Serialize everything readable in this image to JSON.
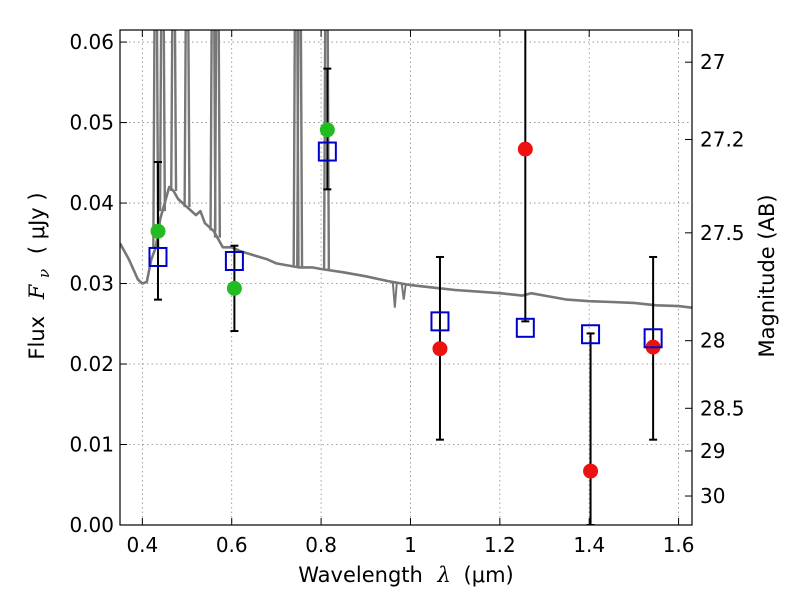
{
  "chart_data": {
    "type": "scatter",
    "xlabel_text": "Wavelength",
    "xlabel_math": "λ",
    "xlabel_unit": "(μm)",
    "ylabel_text": "Flux",
    "ylabel_math_base": "F",
    "ylabel_math_sub": "ν",
    "ylabel_unit": "( μJy )",
    "y2label": "Magnitude (AB)",
    "xlim": [
      0.35,
      1.63
    ],
    "ylim": [
      0.0,
      0.0615
    ],
    "grid": true,
    "xticks": [
      {
        "value": 0.4,
        "label": "0.4"
      },
      {
        "value": 0.6,
        "label": "0.6"
      },
      {
        "value": 0.8,
        "label": "0.8"
      },
      {
        "value": 1.0,
        "label": "1"
      },
      {
        "value": 1.2,
        "label": "1.2"
      },
      {
        "value": 1.4,
        "label": "1.4"
      },
      {
        "value": 1.6,
        "label": "1.6"
      }
    ],
    "yticks": [
      {
        "value": 0.0,
        "label": "0.00"
      },
      {
        "value": 0.01,
        "label": "0.01"
      },
      {
        "value": 0.02,
        "label": "0.02"
      },
      {
        "value": 0.03,
        "label": "0.03"
      },
      {
        "value": 0.04,
        "label": "0.04"
      },
      {
        "value": 0.05,
        "label": "0.05"
      },
      {
        "value": 0.06,
        "label": "0.06"
      }
    ],
    "y2ticks": [
      {
        "label": "27",
        "flux": 0.0575
      },
      {
        "label": "27.2",
        "flux": 0.0479
      },
      {
        "label": "27.5",
        "flux": 0.0363
      },
      {
        "label": "28",
        "flux": 0.0229
      },
      {
        "label": "28.5",
        "flux": 0.0145
      },
      {
        "label": "29",
        "flux": 0.0092
      },
      {
        "label": "30",
        "flux": 0.0036
      }
    ],
    "colors": {
      "observed_detection": "#22bb22",
      "observed_other": "#ee1111",
      "model_photometry": "#0000cc",
      "template": "#777777",
      "errorbar": "#000000",
      "grid": "#888888"
    },
    "series": [
      {
        "role": "observed_detection",
        "marker": "circle",
        "points": [
          {
            "x": 0.435,
            "y": 0.0365,
            "ylo": 0.028,
            "yhi": 0.0451
          },
          {
            "x": 0.606,
            "y": 0.0294,
            "ylo": 0.0241,
            "yhi": 0.0347
          },
          {
            "x": 0.814,
            "y": 0.0491,
            "ylo": 0.0417,
            "yhi": 0.0567
          }
        ]
      },
      {
        "role": "observed_other",
        "marker": "circle",
        "points": [
          {
            "x": 1.066,
            "y": 0.0219,
            "ylo": 0.0106,
            "yhi": 0.0333
          },
          {
            "x": 1.257,
            "y": 0.0467,
            "ylo": 0.0253,
            "yhi": 0.07
          },
          {
            "x": 1.403,
            "y": 0.0067,
            "ylo": 0.0,
            "yhi": 0.0238
          },
          {
            "x": 1.543,
            "y": 0.0221,
            "ylo": 0.0106,
            "yhi": 0.0333
          }
        ]
      },
      {
        "role": "model_photometry",
        "marker": "square",
        "points": [
          {
            "x": 0.435,
            "y": 0.0333
          },
          {
            "x": 0.606,
            "y": 0.0328
          },
          {
            "x": 0.814,
            "y": 0.0464
          },
          {
            "x": 1.066,
            "y": 0.0253
          },
          {
            "x": 1.257,
            "y": 0.0245
          },
          {
            "x": 1.403,
            "y": 0.0237
          },
          {
            "x": 1.543,
            "y": 0.0232
          }
        ]
      }
    ],
    "template_spectrum": {
      "role": "template",
      "points": [
        [
          0.35,
          0.035
        ],
        [
          0.37,
          0.033
        ],
        [
          0.39,
          0.0305
        ],
        [
          0.4,
          0.03
        ],
        [
          0.41,
          0.0302
        ],
        [
          0.42,
          0.033
        ],
        [
          0.43,
          0.0345
        ],
        [
          0.44,
          0.038
        ],
        [
          0.45,
          0.04
        ],
        [
          0.46,
          0.042
        ],
        [
          0.47,
          0.0415
        ],
        [
          0.48,
          0.0405
        ],
        [
          0.5,
          0.0395
        ],
        [
          0.52,
          0.0385
        ],
        [
          0.53,
          0.039
        ],
        [
          0.54,
          0.0375
        ],
        [
          0.55,
          0.037
        ],
        [
          0.56,
          0.0365
        ],
        [
          0.57,
          0.0355
        ],
        [
          0.58,
          0.0345
        ],
        [
          0.6,
          0.0345
        ],
        [
          0.62,
          0.034
        ],
        [
          0.65,
          0.0335
        ],
        [
          0.68,
          0.033
        ],
        [
          0.7,
          0.0325
        ],
        [
          0.72,
          0.0323
        ],
        [
          0.75,
          0.032
        ],
        [
          0.78,
          0.032
        ],
        [
          0.8,
          0.0318
        ],
        [
          0.85,
          0.0314
        ],
        [
          0.9,
          0.0309
        ],
        [
          0.95,
          0.0303
        ],
        [
          0.98,
          0.03
        ],
        [
          1.0,
          0.0298
        ],
        [
          1.05,
          0.0295
        ],
        [
          1.1,
          0.0292
        ],
        [
          1.15,
          0.029
        ],
        [
          1.2,
          0.0288
        ],
        [
          1.25,
          0.0285
        ],
        [
          1.27,
          0.0288
        ],
        [
          1.3,
          0.0285
        ],
        [
          1.35,
          0.028
        ],
        [
          1.4,
          0.0278
        ],
        [
          1.45,
          0.0277
        ],
        [
          1.5,
          0.0276
        ],
        [
          1.55,
          0.0273
        ],
        [
          1.6,
          0.0272
        ],
        [
          1.63,
          0.027
        ]
      ],
      "emission_lines": [
        {
          "x": 0.43,
          "y": 0.07
        },
        {
          "x": 0.445,
          "y": 0.07
        },
        {
          "x": 0.47,
          "y": 0.07
        },
        {
          "x": 0.5,
          "y": 0.07
        },
        {
          "x": 0.558,
          "y": 0.07
        },
        {
          "x": 0.568,
          "y": 0.07
        },
        {
          "x": 0.744,
          "y": 0.07
        },
        {
          "x": 0.752,
          "y": 0.07
        },
        {
          "x": 0.812,
          "y": 0.07
        }
      ],
      "absorption_dips": [
        {
          "x": 0.965,
          "y": 0.027
        },
        {
          "x": 0.985,
          "y": 0.028
        }
      ]
    }
  }
}
